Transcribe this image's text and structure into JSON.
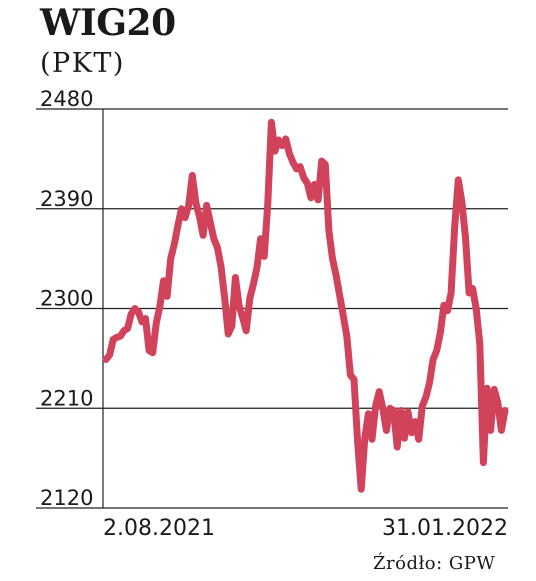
{
  "chart_data": {
    "type": "line",
    "title": "WIG20",
    "subtitle": "(PKT)",
    "source": "Źródło: GPW",
    "x_tick_labels": [
      "2.08.2021",
      "31.01.2022"
    ],
    "x_range": [
      "2021-08-02",
      "2022-01-31"
    ],
    "ylim": [
      2120,
      2480
    ],
    "y_ticks": [
      2120,
      2210,
      2300,
      2390,
      2480
    ],
    "grid": "horizontal",
    "line_color": "#d1435b",
    "series": [
      {
        "values": [
          2254,
          2258,
          2272,
          2274,
          2275,
          2280,
          2282,
          2295,
          2300,
          2297,
          2288,
          2291,
          2262,
          2260,
          2287,
          2302,
          2325,
          2311,
          2345,
          2358,
          2375,
          2390,
          2382,
          2393,
          2420,
          2395,
          2383,
          2366,
          2393,
          2378,
          2363,
          2355,
          2338,
          2310,
          2277,
          2284,
          2328,
          2303,
          2292,
          2280,
          2309,
          2322,
          2337,
          2363,
          2347,
          2395,
          2468,
          2442,
          2452,
          2447,
          2453,
          2440,
          2432,
          2426,
          2428,
          2418,
          2413,
          2400,
          2412,
          2398,
          2433,
          2430,
          2370,
          2345,
          2330,
          2312,
          2294,
          2275,
          2240,
          2236,
          2180,
          2137,
          2183,
          2205,
          2182,
          2212,
          2225,
          2210,
          2190,
          2210,
          2208,
          2175,
          2208,
          2183,
          2207,
          2188,
          2198,
          2182,
          2212,
          2220,
          2233,
          2254,
          2262,
          2278,
          2303,
          2298,
          2314,
          2374,
          2416,
          2396,
          2364,
          2314,
          2318,
          2300,
          2268,
          2161,
          2228,
          2190,
          2227,
          2215,
          2190,
          2208
        ]
      }
    ]
  }
}
